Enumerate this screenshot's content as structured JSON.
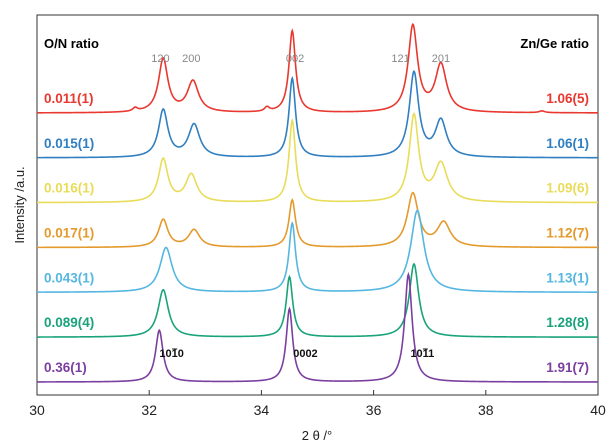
{
  "chart_data": {
    "type": "line",
    "xlabel": "2 θ /°",
    "ylabel": "Intensity /a.u.",
    "xlim": [
      30,
      40
    ],
    "xticks": [
      "30",
      "32",
      "34",
      "36",
      "38",
      "40"
    ],
    "left_header": "O/N ratio",
    "right_header": "Zn/Ge ratio",
    "top_reflections": [
      {
        "label": "120",
        "x": 32.2
      },
      {
        "label": "200",
        "x": 32.75
      },
      {
        "label": "002",
        "x": 34.6
      },
      {
        "label": "121",
        "x": 36.48
      },
      {
        "label": "201",
        "x": 37.2
      }
    ],
    "bottom_reflections": [
      {
        "label": "1010",
        "x": 32.15
      },
      {
        "label": "0002",
        "x": 34.5
      },
      {
        "label": "1011",
        "x": 36.62
      }
    ],
    "series": [
      {
        "on_ratio": "0.011(1)",
        "zn_ge_ratio": "1.06(5)",
        "color": "#e8382f",
        "peaks": [
          [
            31.75,
            0.04,
            0.05
          ],
          [
            32.25,
            0.62,
            0.1
          ],
          [
            32.78,
            0.36,
            0.12
          ],
          [
            34.1,
            0.05,
            0.05
          ],
          [
            34.55,
            0.95,
            0.07
          ],
          [
            36.7,
            1.0,
            0.1
          ],
          [
            37.2,
            0.55,
            0.12
          ],
          [
            39.0,
            0.02,
            0.06
          ]
        ]
      },
      {
        "on_ratio": "0.015(1)",
        "zn_ge_ratio": "1.06(1)",
        "color": "#2f7fc1",
        "peaks": [
          [
            32.25,
            0.55,
            0.1
          ],
          [
            32.8,
            0.38,
            0.12
          ],
          [
            34.55,
            0.92,
            0.07
          ],
          [
            36.72,
            0.98,
            0.1
          ],
          [
            37.2,
            0.42,
            0.12
          ]
        ]
      },
      {
        "on_ratio": "0.016(1)",
        "zn_ge_ratio": "1.09(6)",
        "color": "#e8dc5a",
        "peaks": [
          [
            32.25,
            0.5,
            0.1
          ],
          [
            32.75,
            0.32,
            0.12
          ],
          [
            34.55,
            0.95,
            0.07
          ],
          [
            36.72,
            1.0,
            0.1
          ],
          [
            37.2,
            0.44,
            0.14
          ]
        ]
      },
      {
        "on_ratio": "0.017(1)",
        "zn_ge_ratio": "1.12(7)",
        "color": "#e49a2c",
        "peaks": [
          [
            32.25,
            0.32,
            0.1
          ],
          [
            32.8,
            0.2,
            0.12
          ],
          [
            34.55,
            0.55,
            0.07
          ],
          [
            36.7,
            0.62,
            0.12
          ],
          [
            37.25,
            0.28,
            0.14
          ]
        ]
      },
      {
        "on_ratio": "0.043(1)",
        "zn_ge_ratio": "1.13(1)",
        "color": "#55b7e1",
        "peaks": [
          [
            32.3,
            0.52,
            0.13
          ],
          [
            34.55,
            0.8,
            0.07
          ],
          [
            36.78,
            0.95,
            0.14
          ]
        ]
      },
      {
        "on_ratio": "0.089(4)",
        "zn_ge_ratio": "1.28(8)",
        "color": "#1aa37a",
        "peaks": [
          [
            32.25,
            0.55,
            0.11
          ],
          [
            34.5,
            0.7,
            0.07
          ],
          [
            36.72,
            0.85,
            0.1
          ]
        ]
      },
      {
        "on_ratio": "0.36(1)",
        "zn_ge_ratio": "1.91(7)",
        "color": "#7b3fa0",
        "peaks": [
          [
            32.18,
            0.6,
            0.08
          ],
          [
            34.5,
            0.85,
            0.07
          ],
          [
            36.62,
            1.25,
            0.08
          ]
        ]
      }
    ]
  }
}
